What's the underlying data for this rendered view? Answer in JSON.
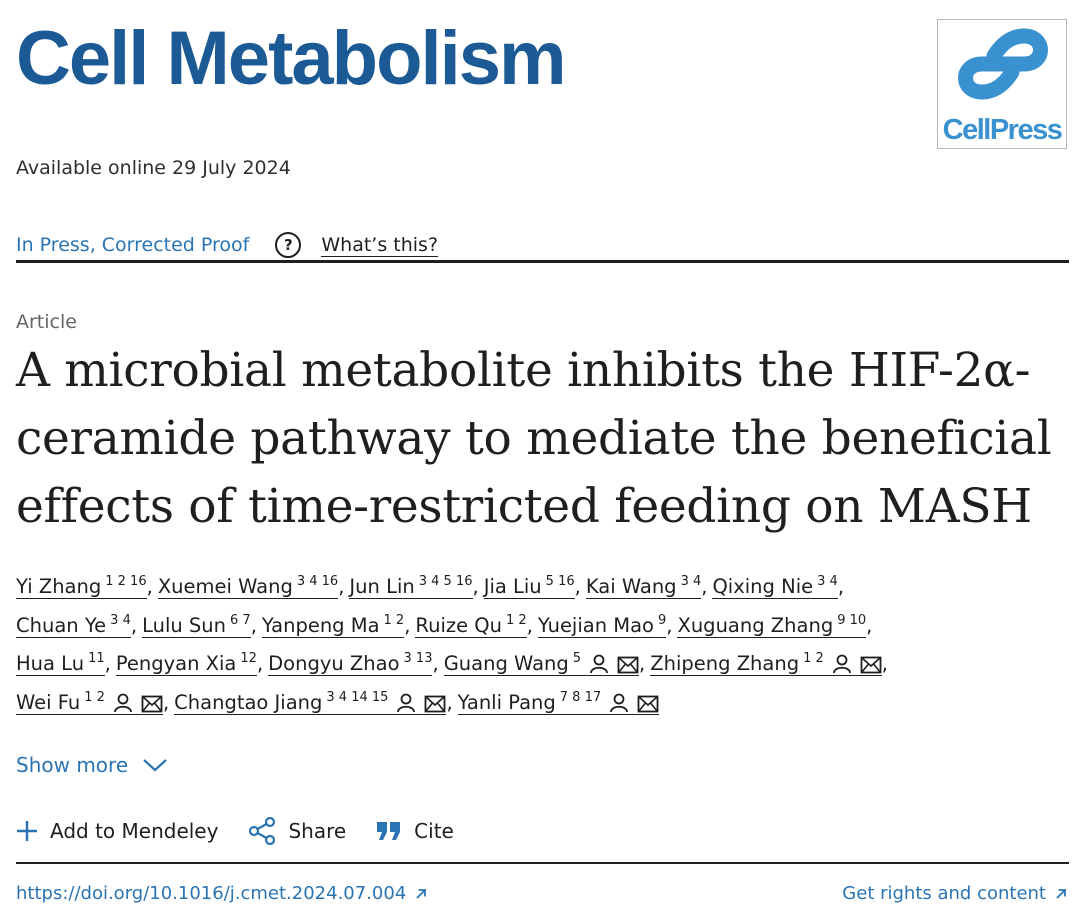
{
  "journal": "Cell Metabolism",
  "publisher_logo": "CellPress",
  "available_online": "Available online 29 July 2024",
  "status": "In Press, Corrected Proof",
  "whats_this": "What’s this?",
  "article_type": "Article",
  "title_lines": [
    "A microbial metabolite inhibits the HIF-2α-",
    "ceramide pathway to mediate the beneficial",
    "effects of time-restricted feeding on MASH"
  ],
  "authors": [
    {
      "name": "Yi Zhang",
      "aff": "1 2 16",
      "contact": false
    },
    {
      "name": "Xuemei Wang",
      "aff": "3 4 16",
      "contact": false
    },
    {
      "name": "Jun Lin",
      "aff": "3 4 5 16",
      "contact": false
    },
    {
      "name": "Jia Liu",
      "aff": "5 16",
      "contact": false
    },
    {
      "name": "Kai Wang",
      "aff": "3 4",
      "contact": false
    },
    {
      "name": "Qixing Nie",
      "aff": "3 4",
      "contact": false
    },
    {
      "name": "Chuan Ye",
      "aff": "3 4",
      "contact": false
    },
    {
      "name": "Lulu Sun",
      "aff": "6 7",
      "contact": false
    },
    {
      "name": "Yanpeng Ma",
      "aff": "1 2",
      "contact": false
    },
    {
      "name": "Ruize Qu",
      "aff": "1 2",
      "contact": false
    },
    {
      "name": "Yuejian Mao",
      "aff": "9",
      "contact": false
    },
    {
      "name": "Xuguang Zhang",
      "aff": "9 10",
      "contact": false
    },
    {
      "name": "Hua Lu",
      "aff": "11",
      "contact": false
    },
    {
      "name": "Pengyan Xia",
      "aff": "12",
      "contact": false
    },
    {
      "name": "Dongyu Zhao",
      "aff": "3 13",
      "contact": false
    },
    {
      "name": "Guang Wang",
      "aff": "5",
      "contact": true
    },
    {
      "name": "Zhipeng Zhang",
      "aff": "1 2",
      "contact": true
    },
    {
      "name": "Wei Fu",
      "aff": "1 2",
      "contact": true
    },
    {
      "name": "Changtao Jiang",
      "aff": "3 4 14 15",
      "contact": true
    },
    {
      "name": "Yanli Pang",
      "aff": "7 8 17",
      "contact": true
    }
  ],
  "author_lines": [
    [
      0,
      1,
      2,
      3,
      4,
      5
    ],
    [
      6,
      7,
      8,
      9,
      10,
      11
    ],
    [
      12,
      13,
      14,
      15,
      16
    ],
    [
      17,
      18,
      19
    ]
  ],
  "show_more": "Show more",
  "actions": {
    "mendeley": "Add to Mendeley",
    "share": "Share",
    "cite": "Cite"
  },
  "doi": "https://doi.org/10.1016/j.cmet.2024.07.004",
  "rights": "Get rights and content",
  "colors": {
    "journal_blue": "#1c5a96",
    "link_blue": "#2a74b4",
    "logo_blue": "#3a91d0"
  }
}
